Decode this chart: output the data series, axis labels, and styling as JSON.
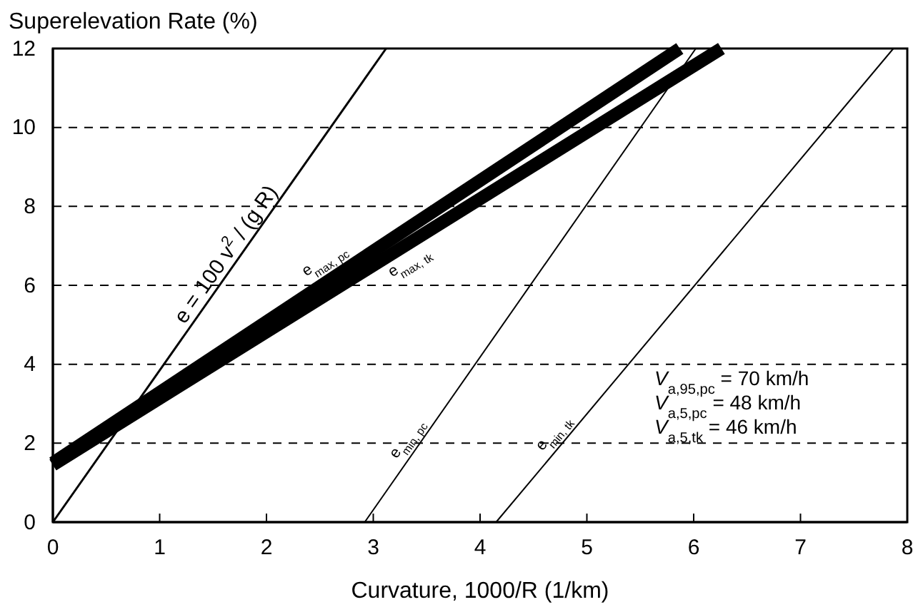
{
  "chart_data": {
    "type": "line",
    "xlabel": "Curvature, 1000/R (1/km)",
    "ylabel": "Superelevation Rate (%)",
    "xlim": [
      0,
      8
    ],
    "ylim": [
      0,
      12
    ],
    "xticks": [
      0,
      1,
      2,
      3,
      4,
      5,
      6,
      7,
      8
    ],
    "yticks": [
      0,
      2,
      4,
      6,
      8,
      10,
      12
    ],
    "grid": "y",
    "marker": "none",
    "series": [
      {
        "name": "e = 100 v$^{2}$ / (g R)",
        "color": "#000000",
        "x": [
          0,
          3.12
        ],
        "values": [
          0,
          12
        ]
      },
      {
        "name": "e$_{max, pc}$",
        "color": "#000000",
        "x": [
          0,
          5.87
        ],
        "values": [
          1.5,
          12
        ]
      },
      {
        "name": "e$_{max, tk}$",
        "color": "#000000",
        "x": [
          0,
          6.26
        ],
        "values": [
          1.45,
          12
        ]
      },
      {
        "name": "e$_{min, pc}$",
        "color": "#000000",
        "x": [
          2.92,
          6.02
        ],
        "values": [
          0,
          12
        ]
      },
      {
        "name": "e$_{min, tk}$",
        "color": "#000000",
        "x": [
          4.15,
          7.87
        ],
        "values": [
          0,
          12
        ]
      }
    ],
    "annotations": [
      "V$_{a,95,pc}$ = 70 km/h",
      "V$_{a,5,pc}$ = 48 km/h",
      "V$_{a,5,tk}$ = 46 km/h"
    ]
  }
}
